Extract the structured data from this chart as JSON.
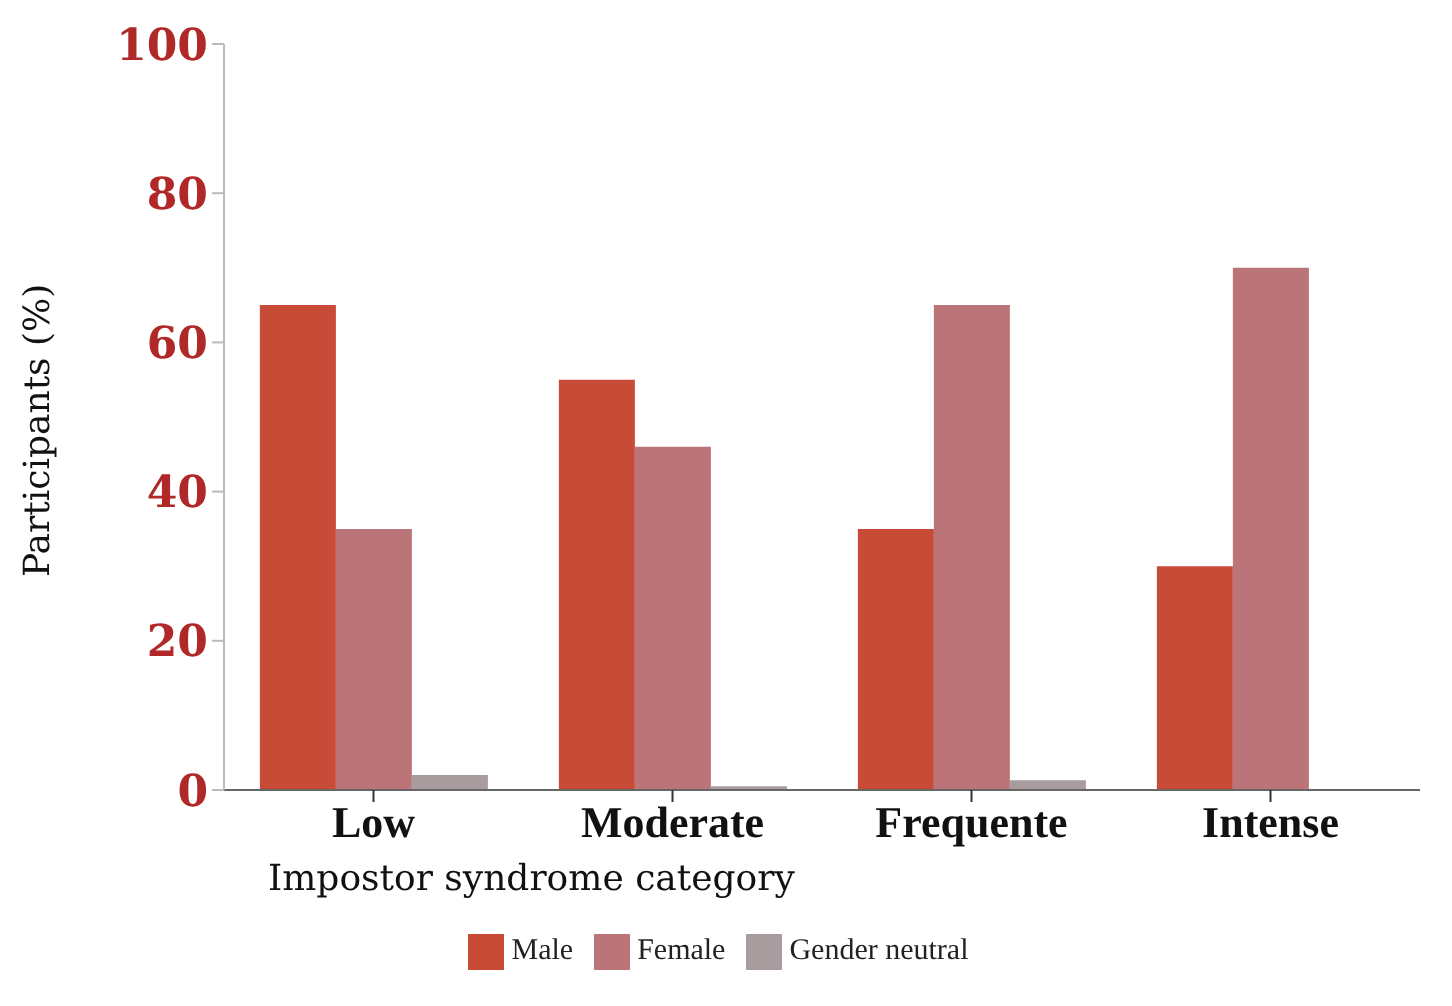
{
  "chart_data": {
    "type": "bar",
    "xlabel": "Impostor syndrome category",
    "ylabel": "Participants (%)",
    "categories": [
      "Low",
      "Moderate",
      "Frequente",
      "Intense"
    ],
    "series": [
      {
        "name": "Male",
        "color": "#c84b38",
        "values": [
          65,
          55,
          35,
          30
        ]
      },
      {
        "name": "Female",
        "color": "#bb7478",
        "values": [
          35,
          46,
          65,
          70
        ]
      },
      {
        "name": "Gender neutral",
        "color": "#a89c9f",
        "values": [
          2,
          0.5,
          1.3,
          0
        ]
      }
    ],
    "ylim": [
      0,
      100
    ],
    "yticks": [
      0,
      20,
      40,
      60,
      80,
      100
    ],
    "grid": false,
    "legend": "bottom"
  }
}
